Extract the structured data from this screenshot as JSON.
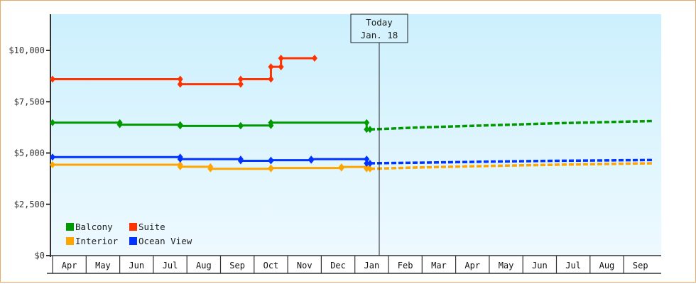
{
  "chart_data": {
    "type": "line",
    "title": "",
    "xlabel": "",
    "ylabel": "",
    "ylim": [
      0,
      11500
    ],
    "y_ticks": [
      {
        "value": 0,
        "label": "$0"
      },
      {
        "value": 2500,
        "label": "$2,500"
      },
      {
        "value": 5000,
        "label": "$5,000"
      },
      {
        "value": 7500,
        "label": "$7,500"
      },
      {
        "value": 10000,
        "label": "$10,000"
      }
    ],
    "categories": [
      "Apr",
      "May",
      "Jun",
      "Jul",
      "Aug",
      "Sep",
      "Oct",
      "Nov",
      "Dec",
      "Jan",
      "Feb",
      "Mar",
      "Apr",
      "May",
      "Jun",
      "Jul",
      "Aug",
      "Sep"
    ],
    "annotation": {
      "line1": "Today",
      "line2": "Jan. 18",
      "x_month_index": 9.4
    },
    "grid": false,
    "legend_position": "lower-left inside",
    "series": [
      {
        "name": "Balcony",
        "color": "#009900",
        "historical": [
          [
            0.0,
            6480
          ],
          [
            2.0,
            6480
          ],
          [
            2.0,
            6380
          ],
          [
            3.8,
            6380
          ],
          [
            3.8,
            6320
          ],
          [
            5.6,
            6320
          ],
          [
            5.6,
            6340
          ],
          [
            6.5,
            6340
          ],
          [
            6.5,
            6480
          ],
          [
            9.35,
            6480
          ],
          [
            9.35,
            6150
          ],
          [
            9.45,
            6150
          ]
        ],
        "projected": [
          [
            9.45,
            6150
          ],
          [
            11.0,
            6250
          ],
          [
            13.0,
            6350
          ],
          [
            15.0,
            6450
          ],
          [
            17.9,
            6560
          ]
        ]
      },
      {
        "name": "Suite",
        "color": "#ff3300",
        "historical": [
          [
            0.0,
            8600
          ],
          [
            3.8,
            8600
          ],
          [
            3.8,
            8350
          ],
          [
            5.6,
            8350
          ],
          [
            5.6,
            8600
          ],
          [
            6.5,
            8600
          ],
          [
            6.5,
            9200
          ],
          [
            6.8,
            9200
          ],
          [
            6.8,
            9620
          ],
          [
            7.8,
            9620
          ]
        ],
        "projected": []
      },
      {
        "name": "Interior",
        "color": "#ffa500",
        "historical": [
          [
            0.0,
            4430
          ],
          [
            3.8,
            4430
          ],
          [
            3.8,
            4330
          ],
          [
            4.7,
            4330
          ],
          [
            4.7,
            4230
          ],
          [
            6.5,
            4230
          ],
          [
            6.5,
            4270
          ],
          [
            8.6,
            4270
          ],
          [
            8.6,
            4320
          ],
          [
            9.35,
            4320
          ],
          [
            9.35,
            4230
          ],
          [
            9.45,
            4230
          ]
        ],
        "projected": [
          [
            9.45,
            4230
          ],
          [
            11.0,
            4300
          ],
          [
            13.0,
            4370
          ],
          [
            15.0,
            4430
          ],
          [
            17.9,
            4500
          ]
        ]
      },
      {
        "name": "Ocean View",
        "color": "#0033ff",
        "historical": [
          [
            0.0,
            4800
          ],
          [
            3.8,
            4800
          ],
          [
            3.8,
            4700
          ],
          [
            5.6,
            4700
          ],
          [
            5.6,
            4620
          ],
          [
            6.5,
            4620
          ],
          [
            6.5,
            4650
          ],
          [
            7.7,
            4650
          ],
          [
            7.7,
            4700
          ],
          [
            9.35,
            4700
          ],
          [
            9.35,
            4500
          ],
          [
            9.45,
            4500
          ]
        ],
        "projected": [
          [
            9.45,
            4500
          ],
          [
            11.0,
            4530
          ],
          [
            13.0,
            4580
          ],
          [
            15.0,
            4620
          ],
          [
            17.9,
            4660
          ]
        ]
      }
    ]
  },
  "legend": [
    {
      "label": "Balcony",
      "color": "#009900"
    },
    {
      "label": "Suite",
      "color": "#ff3300"
    },
    {
      "label": "Interior",
      "color": "#ffa500"
    },
    {
      "label": "Ocean View",
      "color": "#0033ff"
    }
  ],
  "today_marker": {
    "line1": "Today",
    "line2": "Jan. 18"
  },
  "colors": {
    "frame_border": "#e8a868",
    "plot_bg_top": "#ccf0fd",
    "plot_bg_bottom": "#eef9ff",
    "axis": "#333333"
  }
}
